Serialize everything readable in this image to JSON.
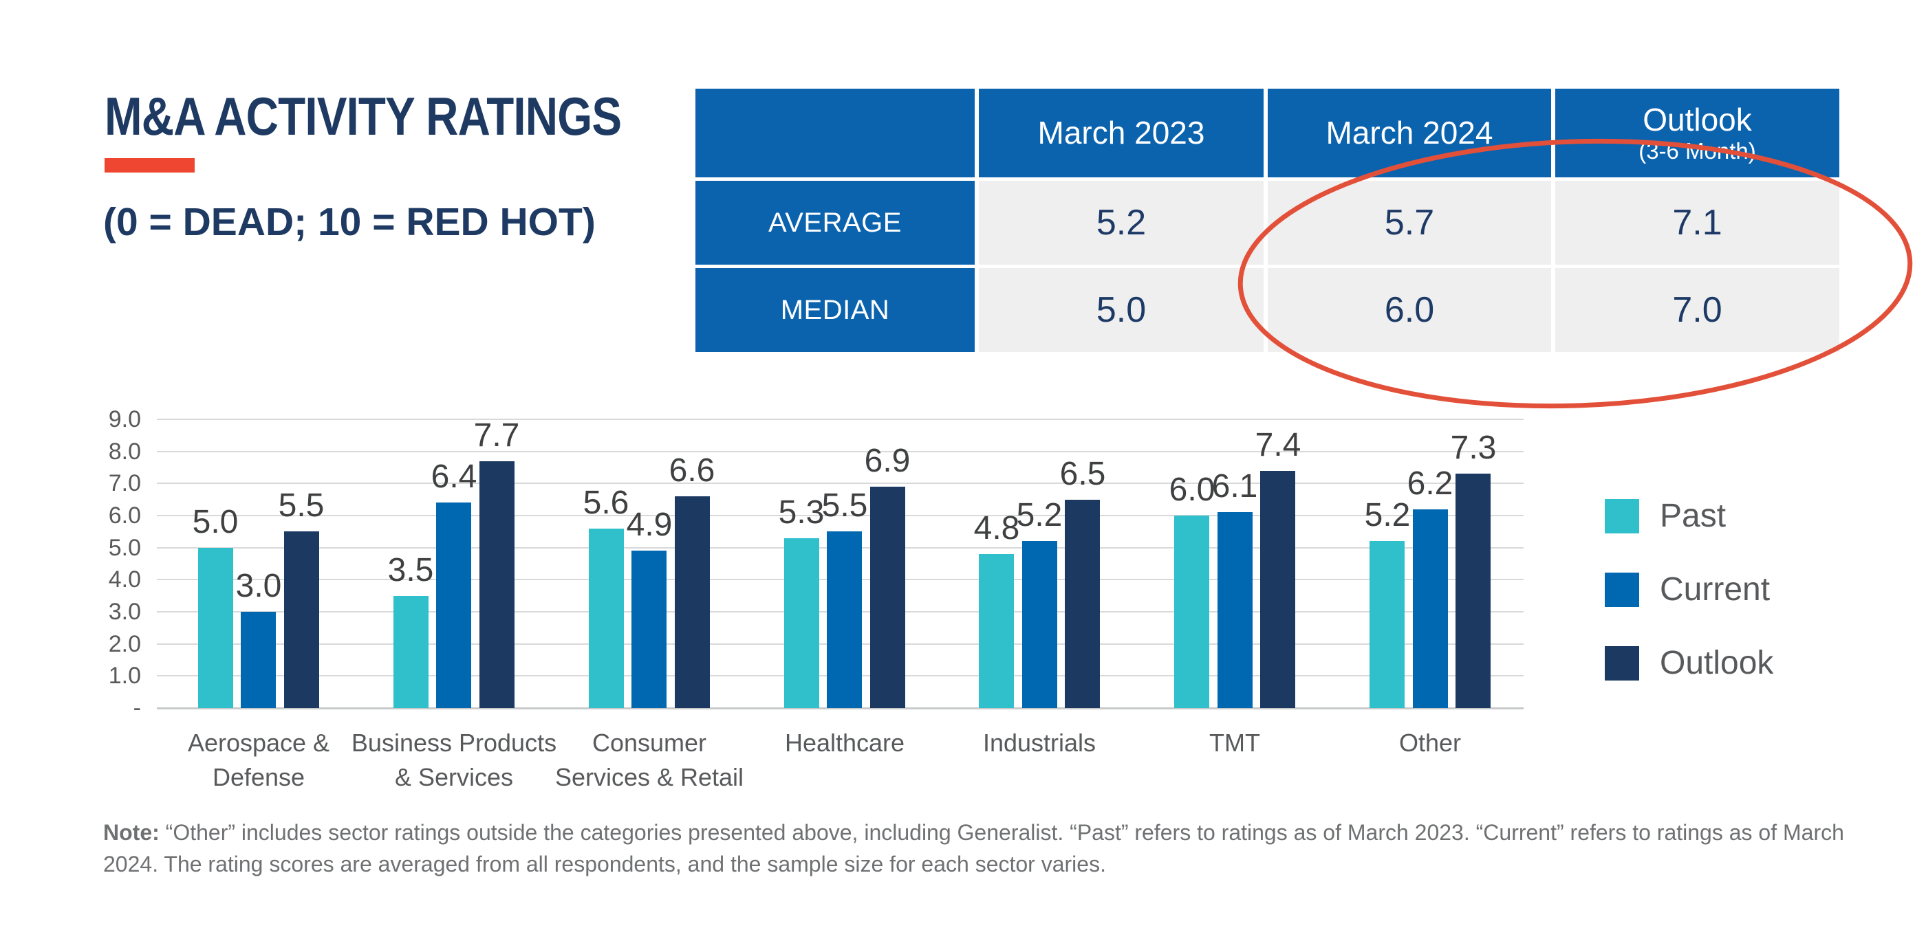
{
  "header": {
    "title": "M&A ACTIVITY RATINGS",
    "subtitle": "(0 = DEAD; 10 = RED HOT)",
    "accent_color": "#ee4630",
    "title_color": "#1e3a63"
  },
  "summary_table": {
    "columns": [
      "March 2023",
      "March 2024",
      "Outlook"
    ],
    "outlook_subtitle": "(3-6 Month)",
    "rows": [
      {
        "label": "AVERAGE",
        "values": [
          "5.2",
          "5.7",
          "7.1"
        ]
      },
      {
        "label": "MEDIAN",
        "values": [
          "5.0",
          "6.0",
          "7.0"
        ]
      }
    ],
    "header_bg": "#0b63ae",
    "cell_bg": "#efeff0",
    "value_color": "#1d3a66"
  },
  "highlight": {
    "shape": "ellipse",
    "color": "#e3503a",
    "circled_columns": [
      "March 2024",
      "Outlook"
    ]
  },
  "chart_data": {
    "type": "bar",
    "categories": [
      "Aerospace & Defense",
      "Business Products & Services",
      "Consumer Services & Retail",
      "Healthcare",
      "Industrials",
      "TMT",
      "Other"
    ],
    "category_lines": [
      [
        "Aerospace &",
        "Defense"
      ],
      [
        "Business Products",
        "& Services"
      ],
      [
        "Consumer",
        "Services & Retail"
      ],
      [
        "Healthcare"
      ],
      [
        "Industrials"
      ],
      [
        "TMT"
      ],
      [
        "Other"
      ]
    ],
    "series": [
      {
        "name": "Past",
        "color": "#2fc0cc",
        "values": [
          5.0,
          3.5,
          5.6,
          5.3,
          4.8,
          6.0,
          5.2
        ]
      },
      {
        "name": "Current",
        "color": "#0068b0",
        "values": [
          3.0,
          6.4,
          4.9,
          5.5,
          5.2,
          6.1,
          6.2
        ]
      },
      {
        "name": "Outlook",
        "color": "#1c3a61",
        "values": [
          5.5,
          7.7,
          6.6,
          6.9,
          6.5,
          7.4,
          7.3
        ]
      }
    ],
    "ylim": [
      0,
      9
    ],
    "ytick_labels": [
      "9.0",
      "8.0",
      "7.0",
      "6.0",
      "5.0",
      "4.0",
      "3.0",
      "2.0",
      "1.0",
      "-"
    ],
    "grid": true,
    "legend_position": "right",
    "value_labels": "one-decimal"
  },
  "note": {
    "label": "Note:",
    "text": " “Other” includes sector ratings outside the categories presented above, including Generalist. “Past” refers to ratings as of March 2023. “Current” refers to ratings as of March 2024. The rating scores are averaged from all respondents, and the sample size for each sector varies."
  }
}
